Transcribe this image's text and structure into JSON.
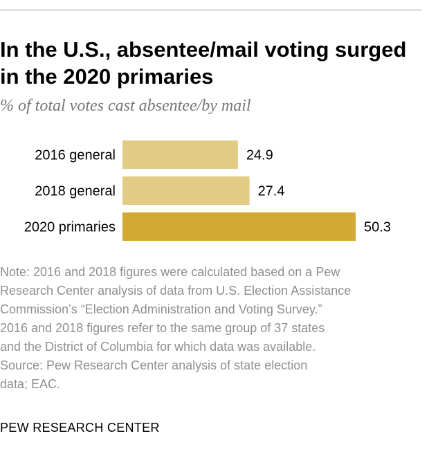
{
  "header": {
    "title": "In the U.S., absentee/mail voting surged in the 2020 primaries",
    "subtitle": "% of total votes cast absentee/by mail"
  },
  "chart_data": {
    "type": "bar",
    "orientation": "horizontal",
    "title": "In the U.S., absentee/mail voting surged in the 2020 primaries",
    "subtitle": "% of total votes cast absentee/by mail",
    "categories": [
      "2016 general",
      "2018 general",
      "2020 primaries"
    ],
    "values": [
      24.9,
      27.4,
      50.3
    ],
    "value_labels": [
      "24.9",
      "27.4",
      "50.3"
    ],
    "colors": [
      "#e2cb85",
      "#e2cb85",
      "#d2a935"
    ],
    "xlim": [
      0,
      50.3
    ],
    "grid": false
  },
  "note": {
    "lines": [
      "Note: 2016 and 2018 figures were calculated based on a Pew",
      "Research Center analysis of data from U.S. Election Assistance",
      "Commission’s “Election Administration and Voting Survey.”",
      "2016 and 2018 figures refer to the same group of 37 states",
      "and the District of Columbia for which data was available.",
      "Source: Pew Research Center analysis of state election",
      "data; EAC."
    ]
  },
  "footer": {
    "brand": "PEW RESEARCH CENTER"
  }
}
